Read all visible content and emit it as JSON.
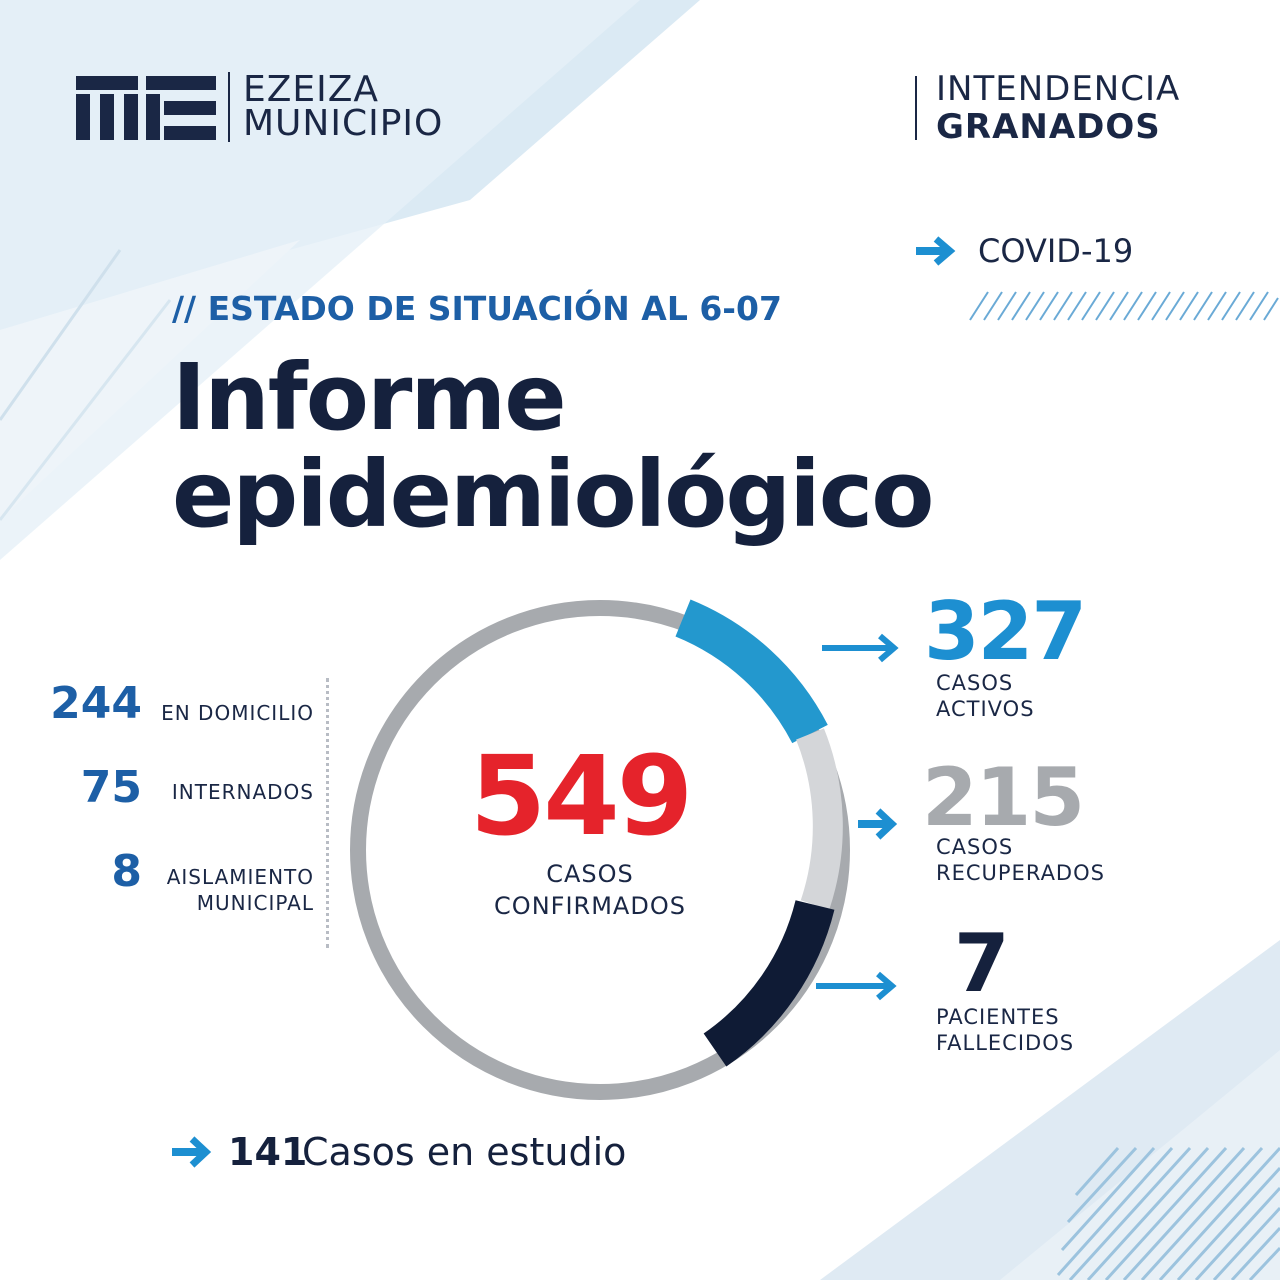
{
  "colors": {
    "navy": "#1a2745",
    "blue": "#1d8fd1",
    "red": "#e5232b",
    "gray": "#a7aaae",
    "light_gray": "#d4d6d9",
    "dark_navy": "#0f1b35"
  },
  "header": {
    "logo_line1": "EZEIZA",
    "logo_line2": "MUNICIPIO",
    "intendencia_line1": "INTENDENCIA",
    "intendencia_line2": "GRANADOS",
    "covid_label": "COVID-19"
  },
  "report": {
    "estado": "// ESTADO DE SITUACIÓN AL 6-07",
    "title_line1": "Informe",
    "title_line2": "epidemiológico"
  },
  "confirmed": {
    "value": "549",
    "label_line1": "CASOS",
    "label_line2": "CONFIRMADOS"
  },
  "breakdown": [
    {
      "value": "244",
      "label_line1": "EN DOMICILIO",
      "label_line2": ""
    },
    {
      "value": "75",
      "label_line1": "INTERNADOS",
      "label_line2": ""
    },
    {
      "value": "8",
      "label_line1": "AISLAMIENTO",
      "label_line2": "MUNICIPAL"
    }
  ],
  "outcomes": [
    {
      "value": "327",
      "label_line1": "CASOS",
      "label_line2": "ACTIVOS",
      "color": "#1d8fd1"
    },
    {
      "value": "215",
      "label_line1": "CASOS",
      "label_line2": "RECUPERADOS",
      "color": "#a7aaae"
    },
    {
      "value": "7",
      "label_line1": "PACIENTES",
      "label_line2": "FALLECIDOS",
      "color": "#15213d"
    }
  ],
  "study": {
    "value": "141",
    "label": "Casos en estudio"
  }
}
